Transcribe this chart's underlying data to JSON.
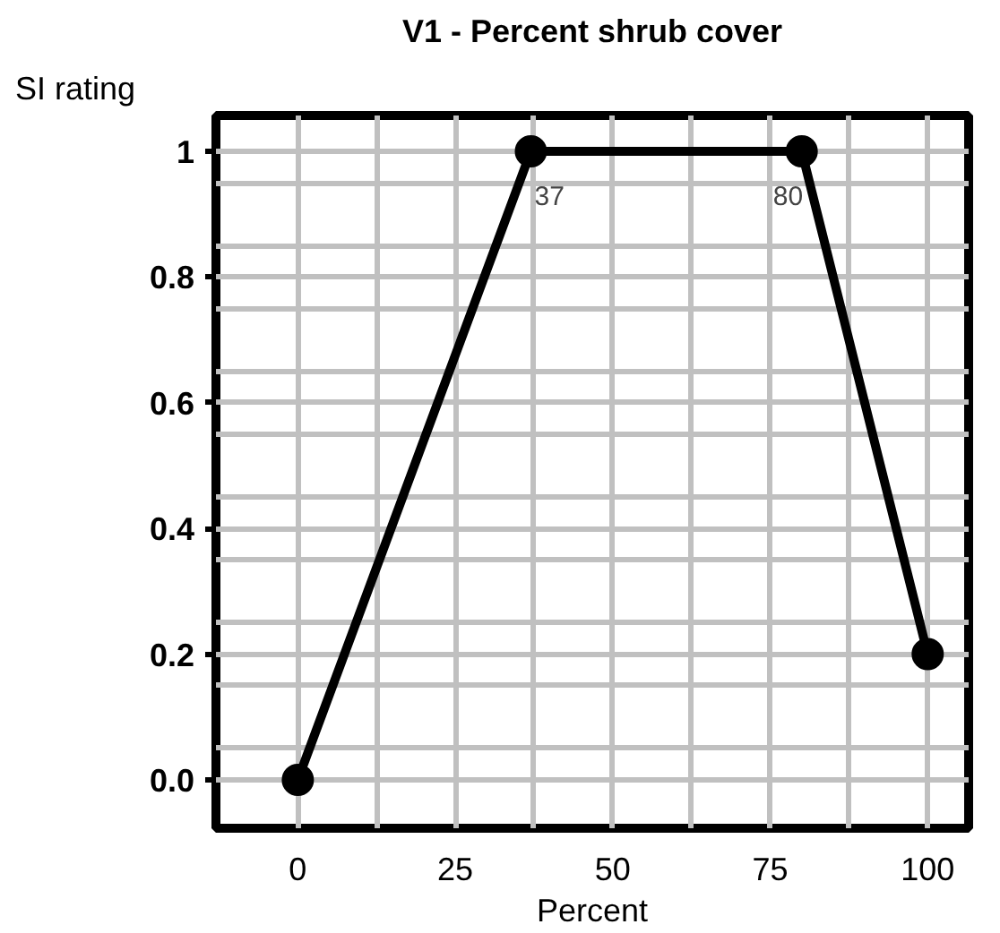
{
  "chart_data": {
    "type": "line",
    "title": "V1 - Percent shrub cover",
    "xlabel": "Percent",
    "ylabel": "SI rating",
    "x": [
      0,
      37,
      80,
      100
    ],
    "series": [
      {
        "color": "#000000",
        "values": [
          0,
          1,
          1,
          0.2
        ]
      }
    ],
    "xlim": [
      -13,
      106.5
    ],
    "ylim": [
      -0.077,
      1.057
    ],
    "xticks": [
      0,
      {
        "value": 12.5,
        "label": null
      },
      25,
      {
        "value": 37.5,
        "label": null
      },
      50,
      {
        "value": 62.5,
        "label": null
      },
      75,
      {
        "value": 87.5,
        "label": null
      },
      100
    ],
    "yticks": [
      {
        "value": 0,
        "label": "0.0"
      },
      {
        "value": 0.05,
        "label": null
      },
      {
        "value": 0.15,
        "label": null
      },
      0.2,
      {
        "value": 0.25,
        "label": null
      },
      {
        "value": 0.35,
        "label": null
      },
      0.4,
      {
        "value": 0.45,
        "label": null
      },
      {
        "value": 0.55,
        "label": null
      },
      0.6,
      {
        "value": 0.65,
        "label": null
      },
      {
        "value": 0.75,
        "label": null
      },
      0.8,
      {
        "value": 0.85,
        "label": null
      },
      {
        "value": 0.95,
        "label": null
      },
      1
    ],
    "annotations": [
      {
        "text": "37",
        "x": 37,
        "y": 1
      },
      {
        "text": "80",
        "x": 80,
        "y": 1
      }
    ],
    "grid": true,
    "marker": "circle",
    "line_style": "solid"
  }
}
